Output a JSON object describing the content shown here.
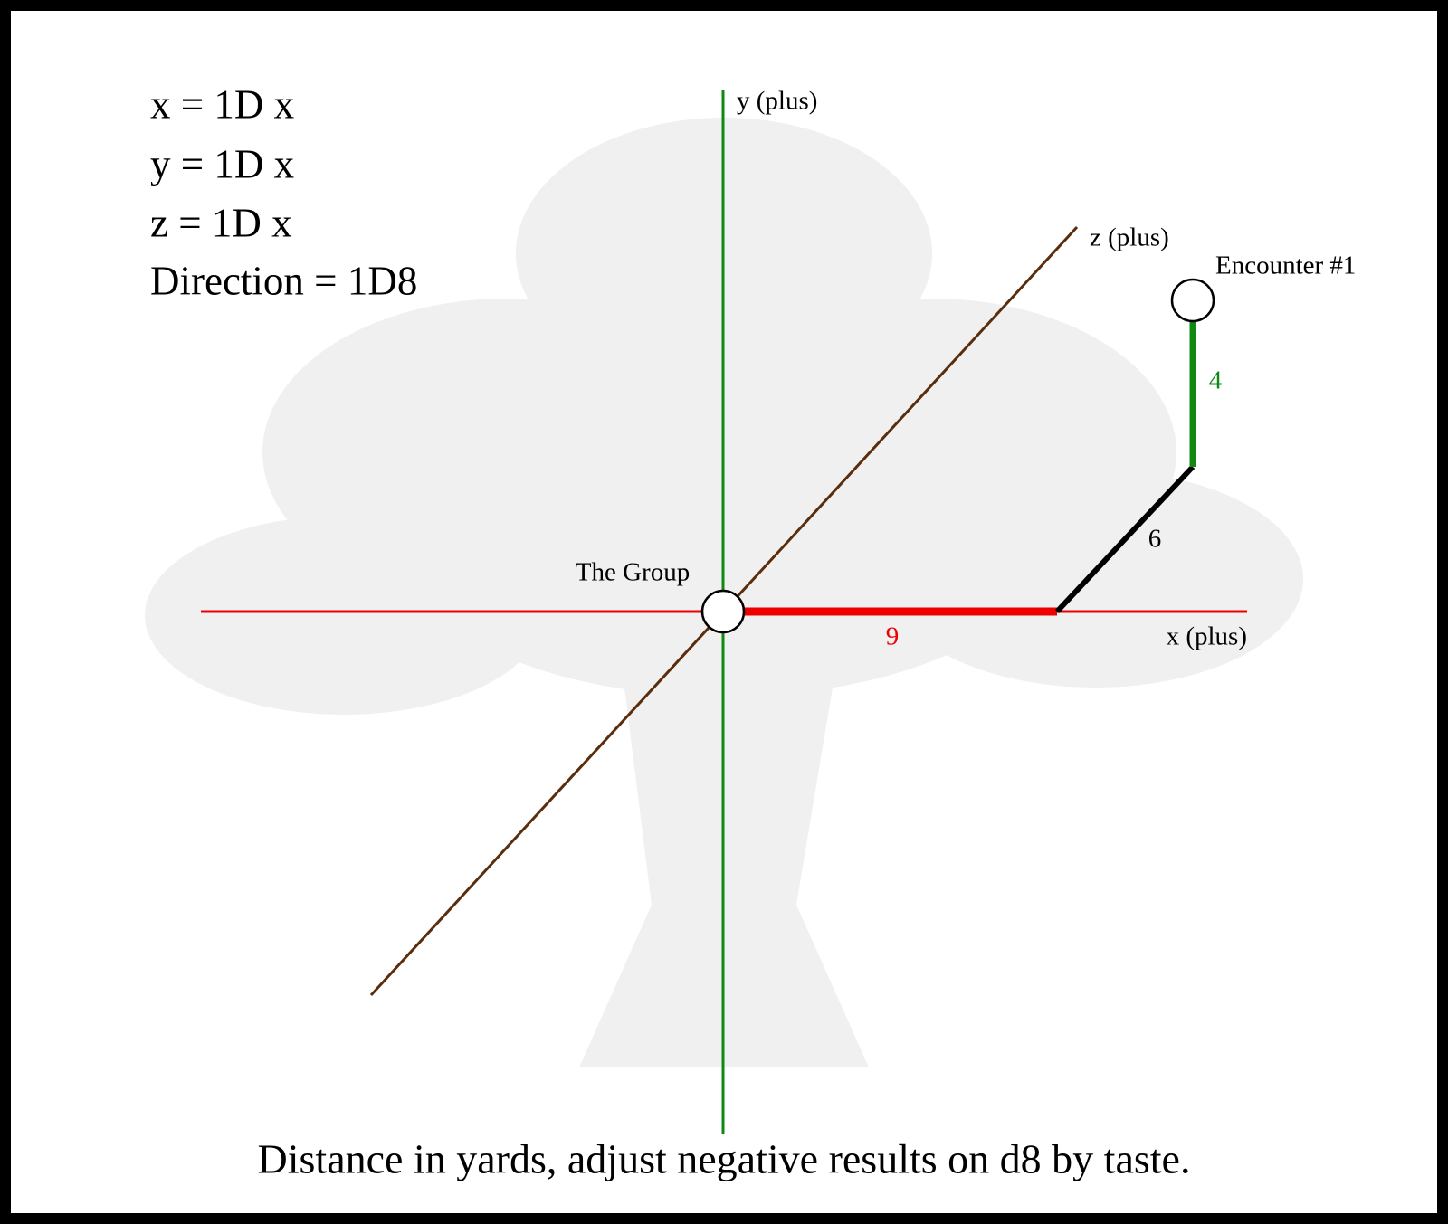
{
  "formulas": [
    "x = 1D x",
    "y = 1D x",
    "z = 1D x",
    "Direction = 1D8"
  ],
  "axes": {
    "y": "y (plus)",
    "z": "z (plus)",
    "x": "x (plus)"
  },
  "nodes": [
    {
      "label": "The Group"
    },
    {
      "label": "Encounter #1"
    }
  ],
  "segments": [
    {
      "axis": "x",
      "length": 9
    },
    {
      "axis": "z",
      "length": 6
    },
    {
      "axis": "y",
      "length": 4
    }
  ],
  "footer": "Distance in yards, adjust negative results on d8 by taste."
}
